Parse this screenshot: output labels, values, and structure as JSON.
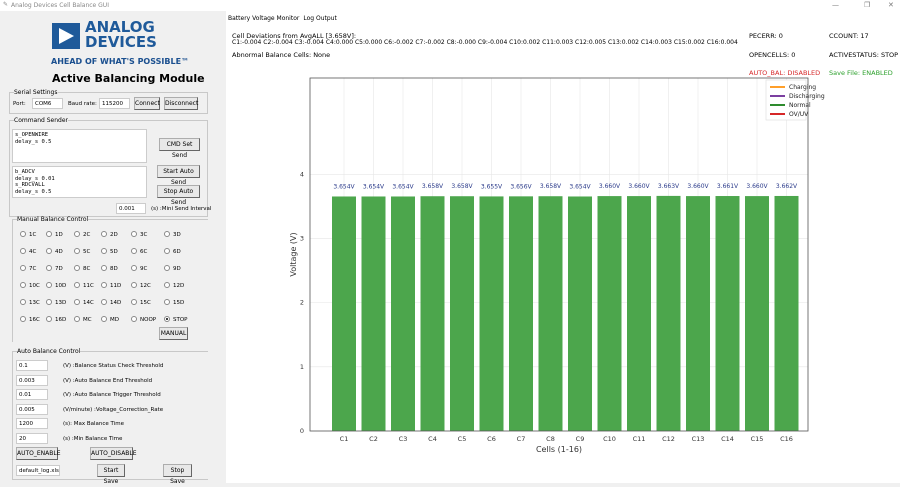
{
  "window": {
    "title": "Analog Devices Cell Balance GUI",
    "controls": [
      "—",
      "❐",
      "✕"
    ]
  },
  "logo": {
    "line1": "ANALOG",
    "line2": "DEVICES",
    "tagline": "AHEAD OF WHAT'S POSSIBLE™"
  },
  "module_title": "Active Balancing Module",
  "serial": {
    "legend": "Serial Settings",
    "port_label": "Port:",
    "port": "COM6",
    "baud_label": "Baud rate:",
    "baud": "115200",
    "connect": "Connect",
    "disconnect": "Disconnect"
  },
  "cmd": {
    "legend": "Command Sender",
    "set_text": "s_OPENWIRE\ndelay_s 0.5",
    "auto_text": "b_ADCV\ndelay_s 0.01\ns_RDCVALL\ndelay_s 0.5",
    "set_send": "CMD Set Send",
    "start_auto": "Start Auto Send",
    "stop_auto": "Stop Auto Send",
    "interval": "0.001",
    "interval_label": "(s) :Mini Send Interval"
  },
  "manual": {
    "legend": "Manual Balance Control",
    "options": [
      "1C",
      "1D",
      "2C",
      "2D",
      "3C",
      "3D",
      "4C",
      "4D",
      "5C",
      "5D",
      "6C",
      "6D",
      "7C",
      "7D",
      "8C",
      "8D",
      "9C",
      "9D",
      "10C",
      "10D",
      "11C",
      "11D",
      "12C",
      "12D",
      "13C",
      "13D",
      "14C",
      "14D",
      "15C",
      "15D",
      "16C",
      "16D",
      "MC",
      "MD",
      "NOOP",
      "STOP"
    ],
    "selected": "STOP",
    "button": "MANUAL"
  },
  "auto": {
    "legend": "Auto Balance Control",
    "params": [
      {
        "value": "0.1",
        "label": "(V) :Balance Status Check Threshold"
      },
      {
        "value": "0.003",
        "label": "(V) :Auto Balance End Threshold"
      },
      {
        "value": "0.01",
        "label": "(V) :Auto Balance Trigger Threshold"
      },
      {
        "value": "0.005",
        "label": "(V/minute) :Voltage_Correction_Rate"
      },
      {
        "value": "1200",
        "label": "(s): Max Balance Time"
      },
      {
        "value": "20",
        "label": "(s) :Min Balance Time"
      }
    ],
    "enable": "AUTO_ENABLE",
    "disable": "AUTO_DISABLE",
    "log_file": "default_log.xlsx",
    "start_save": "Start Save",
    "stop_save": "Stop Save"
  },
  "tabs": [
    "Battery Voltage Monitor",
    "Log Output"
  ],
  "status": {
    "dev_title": "Cell Deviations from AvgALL [3.658V]:",
    "deviations": "C1:-0.004 C2:-0.004 C3:-0.004 C4:0.000 C5:0.000 C6:-0.002 C7:-0.002 C8:-0.000 C9:-0.004 C10:0.002 C11:0.003 C12:0.005 C13:0.002 C14:0.003 C15:0.002 C16:0.004",
    "abnormal": "Abnormal Balance Cells: None",
    "pecerr": "PECERR: 0",
    "ccount": "CCOUNT: 17",
    "opencells": "OPENCELLS: 0",
    "activestatus": "ACTIVESTATUS: STOP",
    "auto_bal": "AUTO_BAL: DISABLED",
    "save_file": "Save File: ENABLED",
    "auto_bal_color": "#d62728",
    "save_file_color": "#2ca02c"
  },
  "chart_data": {
    "type": "bar",
    "categories": [
      "C1",
      "C2",
      "C3",
      "C4",
      "C5",
      "C6",
      "C7",
      "C8",
      "C9",
      "C10",
      "C11",
      "C12",
      "C13",
      "C14",
      "C15",
      "C16"
    ],
    "values": [
      3.654,
      3.654,
      3.654,
      3.658,
      3.658,
      3.655,
      3.656,
      3.658,
      3.654,
      3.66,
      3.66,
      3.663,
      3.66,
      3.661,
      3.66,
      3.662
    ],
    "data_labels": [
      "3.654V",
      "3.654V",
      "3.654V",
      "3.658V",
      "3.658V",
      "3.655V",
      "3.656V",
      "3.658V",
      "3.654V",
      "3.660V",
      "3.660V",
      "3.663V",
      "3.660V",
      "3.661V",
      "3.660V",
      "3.662V"
    ],
    "xlabel": "Cells (1-16)",
    "ylabel": "Voltage (V)",
    "ylim": [
      0,
      5.5
    ],
    "yticks": [
      "0",
      "1",
      "2",
      "3",
      "4"
    ],
    "grid": true,
    "bar_color": "#4ca64c",
    "legend": {
      "placement": "top-right",
      "entries": [
        {
          "name": "Charging",
          "color": "#ff9f2a"
        },
        {
          "name": "Discharging",
          "color": "#7b3fa0"
        },
        {
          "name": "Normal",
          "color": "#2e8b2e"
        },
        {
          "name": "OV/UV",
          "color": "#d62728"
        }
      ]
    }
  }
}
